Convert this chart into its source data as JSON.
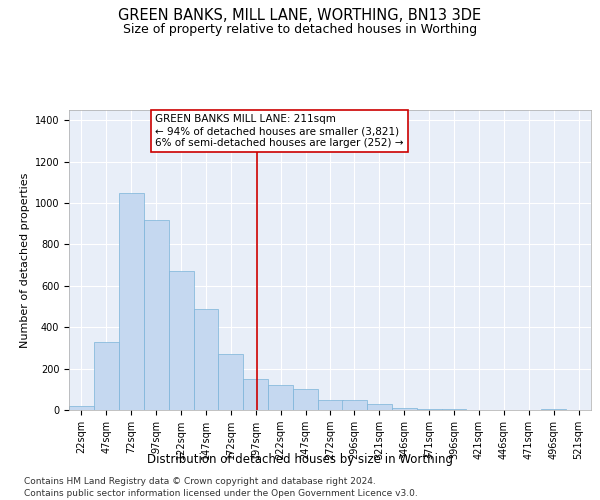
{
  "title": "GREEN BANKS, MILL LANE, WORTHING, BN13 3DE",
  "subtitle": "Size of property relative to detached houses in Worthing",
  "xlabel": "Distribution of detached houses by size in Worthing",
  "ylabel": "Number of detached properties",
  "bar_color": "#c5d8f0",
  "bar_edge_color": "#7ab3d9",
  "vline_color": "#cc0000",
  "vline_x": 211,
  "annotation_title": "GREEN BANKS MILL LANE: 211sqm",
  "annotation_line1": "← 94% of detached houses are smaller (3,821)",
  "annotation_line2": "6% of semi-detached houses are larger (252) →",
  "bins": [
    22,
    47,
    72,
    97,
    122,
    147,
    172,
    197,
    222,
    247,
    272,
    296,
    321,
    346,
    371,
    396,
    421,
    446,
    471,
    496,
    521
  ],
  "bin_labels": [
    "22sqm",
    "47sqm",
    "72sqm",
    "97sqm",
    "122sqm",
    "147sqm",
    "172sqm",
    "197sqm",
    "222sqm",
    "247sqm",
    "272sqm",
    "296sqm",
    "321sqm",
    "346sqm",
    "371sqm",
    "396sqm",
    "421sqm",
    "446sqm",
    "471sqm",
    "496sqm",
    "521sqm"
  ],
  "counts": [
    20,
    330,
    1050,
    920,
    670,
    490,
    270,
    150,
    120,
    100,
    50,
    50,
    30,
    10,
    3,
    5,
    0,
    0,
    0,
    3,
    0
  ],
  "ylim": [
    0,
    1450
  ],
  "yticks": [
    0,
    200,
    400,
    600,
    800,
    1000,
    1200,
    1400
  ],
  "plot_bg_color": "#e8eef8",
  "grid_color": "#ffffff",
  "footer_line1": "Contains HM Land Registry data © Crown copyright and database right 2024.",
  "footer_line2": "Contains public sector information licensed under the Open Government Licence v3.0.",
  "title_fontsize": 10.5,
  "subtitle_fontsize": 9,
  "axis_label_fontsize": 8.5,
  "ylabel_fontsize": 8,
  "tick_fontsize": 7,
  "annotation_fontsize": 7.5,
  "footer_fontsize": 6.5
}
